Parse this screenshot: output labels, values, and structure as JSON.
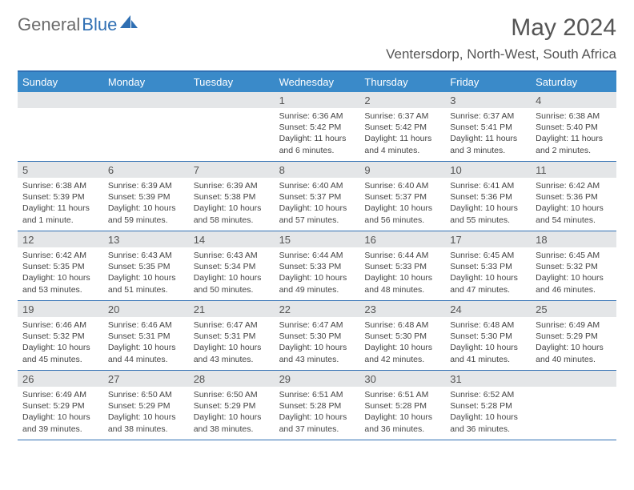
{
  "brand": {
    "part1": "General",
    "part2": "Blue"
  },
  "header": {
    "title": "May 2024",
    "location": "Ventersdorp, North-West, South Africa"
  },
  "colors": {
    "header_bg": "#3a8ac9",
    "border": "#2f6fb3",
    "daynum_bg": "#e4e6e8",
    "text": "#555555"
  },
  "weekdays": [
    "Sunday",
    "Monday",
    "Tuesday",
    "Wednesday",
    "Thursday",
    "Friday",
    "Saturday"
  ],
  "weeks": [
    [
      {
        "n": "",
        "sun": "",
        "set": "",
        "day": ""
      },
      {
        "n": "",
        "sun": "",
        "set": "",
        "day": ""
      },
      {
        "n": "",
        "sun": "",
        "set": "",
        "day": ""
      },
      {
        "n": "1",
        "sun": "Sunrise: 6:36 AM",
        "set": "Sunset: 5:42 PM",
        "day": "Daylight: 11 hours and 6 minutes."
      },
      {
        "n": "2",
        "sun": "Sunrise: 6:37 AM",
        "set": "Sunset: 5:42 PM",
        "day": "Daylight: 11 hours and 4 minutes."
      },
      {
        "n": "3",
        "sun": "Sunrise: 6:37 AM",
        "set": "Sunset: 5:41 PM",
        "day": "Daylight: 11 hours and 3 minutes."
      },
      {
        "n": "4",
        "sun": "Sunrise: 6:38 AM",
        "set": "Sunset: 5:40 PM",
        "day": "Daylight: 11 hours and 2 minutes."
      }
    ],
    [
      {
        "n": "5",
        "sun": "Sunrise: 6:38 AM",
        "set": "Sunset: 5:39 PM",
        "day": "Daylight: 11 hours and 1 minute."
      },
      {
        "n": "6",
        "sun": "Sunrise: 6:39 AM",
        "set": "Sunset: 5:39 PM",
        "day": "Daylight: 10 hours and 59 minutes."
      },
      {
        "n": "7",
        "sun": "Sunrise: 6:39 AM",
        "set": "Sunset: 5:38 PM",
        "day": "Daylight: 10 hours and 58 minutes."
      },
      {
        "n": "8",
        "sun": "Sunrise: 6:40 AM",
        "set": "Sunset: 5:37 PM",
        "day": "Daylight: 10 hours and 57 minutes."
      },
      {
        "n": "9",
        "sun": "Sunrise: 6:40 AM",
        "set": "Sunset: 5:37 PM",
        "day": "Daylight: 10 hours and 56 minutes."
      },
      {
        "n": "10",
        "sun": "Sunrise: 6:41 AM",
        "set": "Sunset: 5:36 PM",
        "day": "Daylight: 10 hours and 55 minutes."
      },
      {
        "n": "11",
        "sun": "Sunrise: 6:42 AM",
        "set": "Sunset: 5:36 PM",
        "day": "Daylight: 10 hours and 54 minutes."
      }
    ],
    [
      {
        "n": "12",
        "sun": "Sunrise: 6:42 AM",
        "set": "Sunset: 5:35 PM",
        "day": "Daylight: 10 hours and 53 minutes."
      },
      {
        "n": "13",
        "sun": "Sunrise: 6:43 AM",
        "set": "Sunset: 5:35 PM",
        "day": "Daylight: 10 hours and 51 minutes."
      },
      {
        "n": "14",
        "sun": "Sunrise: 6:43 AM",
        "set": "Sunset: 5:34 PM",
        "day": "Daylight: 10 hours and 50 minutes."
      },
      {
        "n": "15",
        "sun": "Sunrise: 6:44 AM",
        "set": "Sunset: 5:33 PM",
        "day": "Daylight: 10 hours and 49 minutes."
      },
      {
        "n": "16",
        "sun": "Sunrise: 6:44 AM",
        "set": "Sunset: 5:33 PM",
        "day": "Daylight: 10 hours and 48 minutes."
      },
      {
        "n": "17",
        "sun": "Sunrise: 6:45 AM",
        "set": "Sunset: 5:33 PM",
        "day": "Daylight: 10 hours and 47 minutes."
      },
      {
        "n": "18",
        "sun": "Sunrise: 6:45 AM",
        "set": "Sunset: 5:32 PM",
        "day": "Daylight: 10 hours and 46 minutes."
      }
    ],
    [
      {
        "n": "19",
        "sun": "Sunrise: 6:46 AM",
        "set": "Sunset: 5:32 PM",
        "day": "Daylight: 10 hours and 45 minutes."
      },
      {
        "n": "20",
        "sun": "Sunrise: 6:46 AM",
        "set": "Sunset: 5:31 PM",
        "day": "Daylight: 10 hours and 44 minutes."
      },
      {
        "n": "21",
        "sun": "Sunrise: 6:47 AM",
        "set": "Sunset: 5:31 PM",
        "day": "Daylight: 10 hours and 43 minutes."
      },
      {
        "n": "22",
        "sun": "Sunrise: 6:47 AM",
        "set": "Sunset: 5:30 PM",
        "day": "Daylight: 10 hours and 43 minutes."
      },
      {
        "n": "23",
        "sun": "Sunrise: 6:48 AM",
        "set": "Sunset: 5:30 PM",
        "day": "Daylight: 10 hours and 42 minutes."
      },
      {
        "n": "24",
        "sun": "Sunrise: 6:48 AM",
        "set": "Sunset: 5:30 PM",
        "day": "Daylight: 10 hours and 41 minutes."
      },
      {
        "n": "25",
        "sun": "Sunrise: 6:49 AM",
        "set": "Sunset: 5:29 PM",
        "day": "Daylight: 10 hours and 40 minutes."
      }
    ],
    [
      {
        "n": "26",
        "sun": "Sunrise: 6:49 AM",
        "set": "Sunset: 5:29 PM",
        "day": "Daylight: 10 hours and 39 minutes."
      },
      {
        "n": "27",
        "sun": "Sunrise: 6:50 AM",
        "set": "Sunset: 5:29 PM",
        "day": "Daylight: 10 hours and 38 minutes."
      },
      {
        "n": "28",
        "sun": "Sunrise: 6:50 AM",
        "set": "Sunset: 5:29 PM",
        "day": "Daylight: 10 hours and 38 minutes."
      },
      {
        "n": "29",
        "sun": "Sunrise: 6:51 AM",
        "set": "Sunset: 5:28 PM",
        "day": "Daylight: 10 hours and 37 minutes."
      },
      {
        "n": "30",
        "sun": "Sunrise: 6:51 AM",
        "set": "Sunset: 5:28 PM",
        "day": "Daylight: 10 hours and 36 minutes."
      },
      {
        "n": "31",
        "sun": "Sunrise: 6:52 AM",
        "set": "Sunset: 5:28 PM",
        "day": "Daylight: 10 hours and 36 minutes."
      },
      {
        "n": "",
        "sun": "",
        "set": "",
        "day": ""
      }
    ]
  ]
}
